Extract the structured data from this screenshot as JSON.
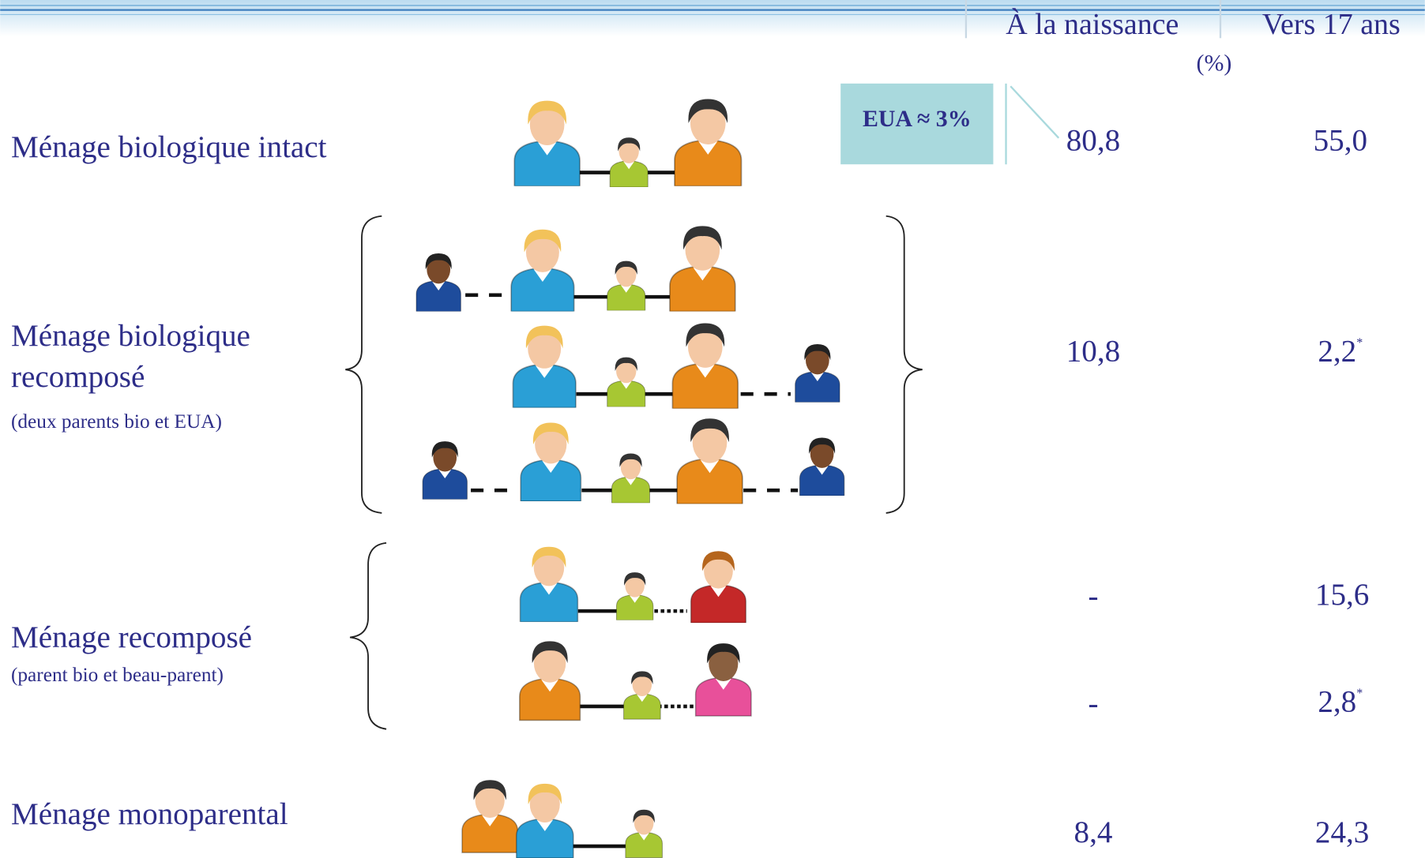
{
  "header": {
    "col_birth": "À la naissance",
    "col_age17": "Vers 17 ans",
    "unit": "(%)"
  },
  "callout": "EUA ≈ 3%",
  "rows": [
    {
      "label": "Ménage biologique intact",
      "birth": "80,8",
      "age17": "55,0"
    },
    {
      "label": "Ménage biologique",
      "label_line2": "recomposé",
      "sublabel": "(deux parents bio et EUA)",
      "birth": "10,8",
      "age17": "2,2",
      "age17_note": "*"
    },
    {
      "label": "Ménage recomposé",
      "sublabel": "(parent bio et beau-parent)",
      "subrows": [
        {
          "birth": "-",
          "age17": "15,6"
        },
        {
          "birth": "-",
          "age17": "2,8",
          "age17_note": "*"
        }
      ]
    },
    {
      "label": "Ménage monoparental",
      "birth": "8,4",
      "age17": "24,3"
    }
  ]
}
